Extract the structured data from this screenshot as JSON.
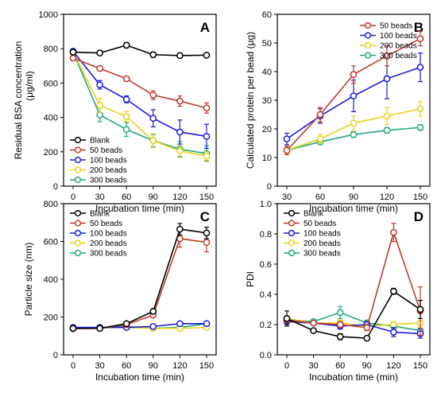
{
  "chart_data": [
    {
      "type": "line",
      "panel_label": "A",
      "xlabel": "Incubation time (min)",
      "ylabel": "Residual BSA concentration (μg/ml)",
      "x": [
        0,
        30,
        60,
        90,
        120,
        150
      ],
      "xlim": [
        0,
        150
      ],
      "ylim": [
        0,
        1000
      ],
      "yticks": [
        0,
        200,
        400,
        600,
        800,
        1000
      ],
      "grid": false,
      "legend_position": "bottom-left",
      "series": [
        {
          "name": "Blank",
          "color": "#000000",
          "values": [
            780,
            775,
            820,
            765,
            760,
            762
          ],
          "errors": [
            10,
            10,
            15,
            15,
            8,
            8
          ]
        },
        {
          "name": "50 beads",
          "color": "#c0392b",
          "values": [
            745,
            685,
            625,
            530,
            495,
            455
          ],
          "errors": [
            15,
            10,
            10,
            25,
            30,
            30
          ]
        },
        {
          "name": "100 beads",
          "color": "#1a1adb",
          "values": [
            785,
            590,
            505,
            395,
            315,
            290
          ],
          "errors": [
            15,
            25,
            20,
            50,
            70,
            70
          ]
        },
        {
          "name": "200 beads",
          "color": "#e8d21a",
          "values": [
            780,
            470,
            405,
            265,
            205,
            175
          ],
          "errors": [
            15,
            40,
            30,
            40,
            30,
            25
          ]
        },
        {
          "name": "300 beads",
          "color": "#1fa97a",
          "values": [
            780,
            415,
            330,
            265,
            215,
            190
          ],
          "errors": [
            15,
            40,
            40,
            35,
            45,
            45
          ]
        }
      ]
    },
    {
      "type": "line",
      "panel_label": "B",
      "xlabel": "Incubation time (min)",
      "ylabel": "Calculated protein per bead (μg)",
      "x": [
        30,
        60,
        90,
        120,
        150
      ],
      "xlim": [
        30,
        150
      ],
      "ylim": [
        0,
        60
      ],
      "yticks": [
        0,
        10,
        20,
        30,
        40,
        50,
        60
      ],
      "grid": false,
      "legend_position": "top-right",
      "series": [
        {
          "name": "50 beads",
          "color": "#c0392b",
          "values": [
            12.5,
            25,
            39,
            45.5,
            51.5
          ],
          "errors": [
            1.5,
            2.5,
            3,
            3.5,
            2.5
          ]
        },
        {
          "name": "100 beads",
          "color": "#1a1adb",
          "values": [
            16.5,
            24.5,
            31.5,
            37.5,
            41.5
          ],
          "errors": [
            2,
            2.5,
            5.5,
            7,
            5
          ]
        },
        {
          "name": "200 beads",
          "color": "#e8d21a",
          "values": [
            12.5,
            16.5,
            22,
            24.5,
            27
          ],
          "errors": [
            1.5,
            1.5,
            2.5,
            3,
            2.5
          ]
        },
        {
          "name": "300 beads",
          "color": "#1fa97a",
          "values": [
            12.5,
            15.5,
            18,
            19.5,
            20.5
          ],
          "errors": [
            1.5,
            1,
            1,
            1,
            1
          ]
        }
      ]
    },
    {
      "type": "line",
      "panel_label": "C",
      "xlabel": "Incubation time (min)",
      "ylabel": "Particle size (nm)",
      "x": [
        0,
        30,
        60,
        90,
        120,
        150
      ],
      "xlim": [
        0,
        150
      ],
      "ylim": [
        0,
        800
      ],
      "yticks": [
        0,
        200,
        400,
        600,
        800
      ],
      "grid": false,
      "legend_position": "top-left",
      "series": [
        {
          "name": "Blank",
          "color": "#000000",
          "values": [
            140,
            140,
            165,
            230,
            665,
            645
          ],
          "errors": [
            5,
            5,
            5,
            8,
            30,
            30
          ]
        },
        {
          "name": "50 beads",
          "color": "#c0392b",
          "values": [
            138,
            140,
            160,
            210,
            615,
            595
          ],
          "errors": [
            5,
            5,
            5,
            8,
            45,
            50
          ]
        },
        {
          "name": "100 beads",
          "color": "#1a1adb",
          "values": [
            145,
            145,
            145,
            150,
            165,
            165
          ],
          "errors": [
            5,
            5,
            5,
            5,
            5,
            5
          ]
        },
        {
          "name": "200 beads",
          "color": "#e8d21a",
          "values": [
            140,
            145,
            145,
            140,
            140,
            145
          ],
          "errors": [
            5,
            5,
            5,
            5,
            5,
            5
          ]
        },
        {
          "name": "300 beads",
          "color": "#1fa97a",
          "values": [
            140,
            145,
            150,
            140,
            145,
            165
          ],
          "errors": [
            5,
            5,
            5,
            5,
            5,
            5
          ]
        }
      ]
    },
    {
      "type": "line",
      "panel_label": "D",
      "xlabel": "Incubation time (min)",
      "ylabel": "PDI",
      "x": [
        0,
        30,
        60,
        90,
        120,
        150
      ],
      "xlim": [
        0,
        150
      ],
      "ylim": [
        0,
        1.0
      ],
      "yticks": [
        0.0,
        0.2,
        0.4,
        0.6,
        0.8,
        1.0
      ],
      "grid": false,
      "legend_position": "top-left",
      "series": [
        {
          "name": "Blank",
          "color": "#000000",
          "values": [
            0.24,
            0.16,
            0.12,
            0.11,
            0.42,
            0.3
          ],
          "errors": [
            0.05,
            0.01,
            0.02,
            0.01,
            0.02,
            0.06
          ]
        },
        {
          "name": "50 beads",
          "color": "#c0392b",
          "values": [
            0.23,
            0.21,
            0.2,
            0.18,
            0.81,
            0.29
          ],
          "errors": [
            0.02,
            0.01,
            0.02,
            0.02,
            0.06,
            0.16
          ]
        },
        {
          "name": "100 beads",
          "color": "#1a1adb",
          "values": [
            0.22,
            0.21,
            0.19,
            0.2,
            0.15,
            0.14
          ],
          "errors": [
            0.02,
            0.01,
            0.02,
            0.02,
            0.03,
            0.03
          ]
        },
        {
          "name": "200 beads",
          "color": "#e8d21a",
          "values": [
            0.24,
            0.21,
            0.21,
            0.19,
            0.2,
            0.21
          ],
          "errors": [
            0.02,
            0.01,
            0.02,
            0.02,
            0.02,
            0.03
          ]
        },
        {
          "name": "300 beads",
          "color": "#1fa97a",
          "values": [
            0.23,
            0.22,
            0.28,
            0.21,
            0.19,
            0.16
          ],
          "errors": [
            0.02,
            0.01,
            0.04,
            0.02,
            0.02,
            0.02
          ]
        }
      ]
    }
  ]
}
